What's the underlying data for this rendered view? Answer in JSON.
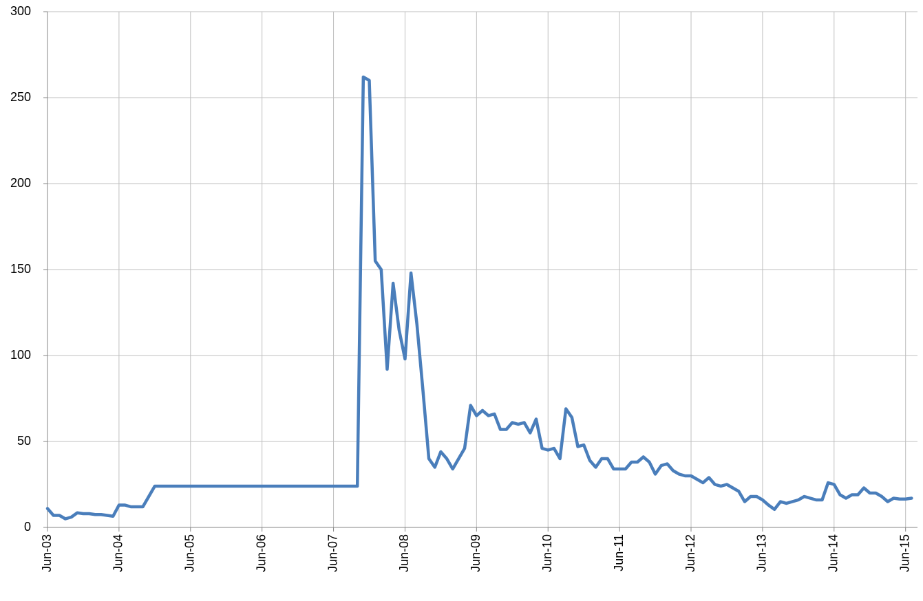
{
  "chart_data": {
    "type": "line",
    "x": [
      "2003-06",
      "2003-07",
      "2003-08",
      "2003-09",
      "2003-10",
      "2003-11",
      "2003-12",
      "2004-01",
      "2004-02",
      "2004-03",
      "2004-04",
      "2004-05",
      "2004-06",
      "2004-07",
      "2004-08",
      "2004-09",
      "2004-10",
      "2004-11",
      "2004-12",
      "2005-01",
      "2005-02",
      "2005-03",
      "2005-04",
      "2005-05",
      "2005-06",
      "2005-07",
      "2005-08",
      "2005-09",
      "2005-10",
      "2005-11",
      "2005-12",
      "2006-01",
      "2006-02",
      "2006-03",
      "2006-04",
      "2006-05",
      "2006-06",
      "2006-07",
      "2006-08",
      "2006-09",
      "2006-10",
      "2006-11",
      "2006-12",
      "2007-01",
      "2007-02",
      "2007-03",
      "2007-04",
      "2007-05",
      "2007-06",
      "2007-07",
      "2007-08",
      "2007-09",
      "2007-10",
      "2007-11",
      "2007-12",
      "2008-01",
      "2008-02",
      "2008-03",
      "2008-04",
      "2008-05",
      "2008-06",
      "2008-07",
      "2008-08",
      "2008-09",
      "2008-10",
      "2008-11",
      "2008-12",
      "2009-01",
      "2009-02",
      "2009-03",
      "2009-04",
      "2009-05",
      "2009-06",
      "2009-07",
      "2009-08",
      "2009-09",
      "2009-10",
      "2009-11",
      "2009-12",
      "2010-01",
      "2010-02",
      "2010-03",
      "2010-04",
      "2010-05",
      "2010-06",
      "2010-07",
      "2010-08",
      "2010-09",
      "2010-10",
      "2010-11",
      "2010-12",
      "2011-01",
      "2011-02",
      "2011-03",
      "2011-04",
      "2011-05",
      "2011-06",
      "2011-07",
      "2011-08",
      "2011-09",
      "2011-10",
      "2011-11",
      "2011-12",
      "2012-01",
      "2012-02",
      "2012-03",
      "2012-04",
      "2012-05",
      "2012-06",
      "2012-07",
      "2012-08",
      "2012-09",
      "2012-10",
      "2012-11",
      "2012-12",
      "2013-01",
      "2013-02",
      "2013-03",
      "2013-04",
      "2013-05",
      "2013-06",
      "2013-07",
      "2013-08",
      "2013-09",
      "2013-10",
      "2013-11",
      "2013-12",
      "2014-01",
      "2014-02",
      "2014-03",
      "2014-04",
      "2014-05",
      "2014-06",
      "2014-07",
      "2014-08",
      "2014-09",
      "2014-10",
      "2014-11",
      "2014-12",
      "2015-01",
      "2015-02",
      "2015-03",
      "2015-04",
      "2015-05",
      "2015-06",
      "2015-07"
    ],
    "series": [
      {
        "color": "#4a7ebb",
        "values": [
          11,
          7,
          7,
          5,
          6,
          8.5,
          8,
          8,
          7.5,
          7.5,
          7,
          6.5,
          13,
          13,
          12,
          12,
          12,
          18,
          24,
          24,
          24,
          24,
          24,
          24,
          24,
          24,
          24,
          24,
          24,
          24,
          24,
          24,
          24,
          24,
          24,
          24,
          24,
          24,
          24,
          24,
          24,
          24,
          24,
          24,
          24,
          24,
          24,
          24,
          24,
          24,
          24,
          24,
          24,
          262,
          260,
          155,
          150,
          92,
          142,
          115,
          98,
          148,
          118,
          80,
          40,
          35,
          44,
          40,
          34,
          40,
          46,
          71,
          65,
          68,
          65,
          66,
          57,
          57,
          61,
          60,
          61,
          55,
          63,
          46,
          45,
          46,
          40,
          69,
          64,
          47,
          48,
          39,
          35,
          40,
          40,
          34,
          34,
          34,
          38,
          38,
          41,
          38,
          31,
          36,
          37,
          33,
          31,
          30,
          30,
          28,
          26,
          29,
          25,
          24,
          25,
          23,
          21,
          15,
          18,
          18,
          16,
          13,
          10.5,
          15,
          14,
          15,
          16,
          18,
          17,
          16,
          16,
          26,
          25,
          19,
          17,
          19,
          19,
          23,
          20,
          20,
          18,
          15,
          17,
          16.5,
          16.5,
          17
        ]
      }
    ],
    "xlim": [
      "2003-06",
      "2015-08"
    ],
    "xticks": [
      {
        "value": "2003-06",
        "label": "Jun-03"
      },
      {
        "value": "2004-06",
        "label": "Jun-04"
      },
      {
        "value": "2005-06",
        "label": "Jun-05"
      },
      {
        "value": "2006-06",
        "label": "Jun-06"
      },
      {
        "value": "2007-06",
        "label": "Jun-07"
      },
      {
        "value": "2008-06",
        "label": "Jun-08"
      },
      {
        "value": "2009-06",
        "label": "Jun-09"
      },
      {
        "value": "2010-06",
        "label": "Jun-10"
      },
      {
        "value": "2011-06",
        "label": "Jun-11"
      },
      {
        "value": "2012-06",
        "label": "Jun-12"
      },
      {
        "value": "2013-06",
        "label": "Jun-13"
      },
      {
        "value": "2014-06",
        "label": "Jun-14"
      },
      {
        "value": "2015-06",
        "label": "Jun-15"
      }
    ],
    "ylim": [
      0,
      300
    ],
    "yticks": [
      0,
      50,
      100,
      150,
      200,
      250,
      300
    ],
    "grid": true
  }
}
